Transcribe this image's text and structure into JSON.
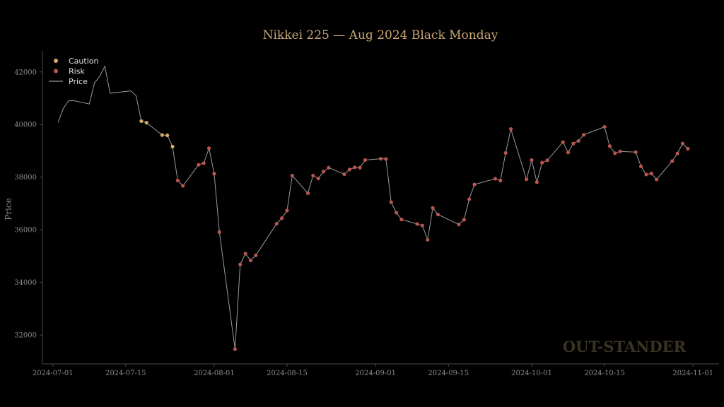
{
  "chart_data": {
    "type": "line",
    "title": "Nikkei 225 — Aug 2024 Black Monday",
    "ylabel": "Price",
    "xlabel": "",
    "ylim": [
      30900,
      42800
    ],
    "xlim": [
      "2024-06-29",
      "2024-11-06"
    ],
    "y_ticks": [
      32000,
      34000,
      36000,
      38000,
      40000,
      42000
    ],
    "x_ticks": [
      "2024-07-01",
      "2024-07-15",
      "2024-08-01",
      "2024-08-15",
      "2024-09-01",
      "2024-09-15",
      "2024-10-01",
      "2024-10-15",
      "2024-11-01"
    ],
    "grid": false,
    "legend_position": "top-left",
    "legend": [
      "Caution",
      "Risk",
      "Price"
    ],
    "watermark": "OUT-STANDER",
    "colors": {
      "price": "#9a9a9a",
      "caution": "#d4a866",
      "risk": "#b95550",
      "axis": "#4a4a4a"
    },
    "series": [
      {
        "name": "Price",
        "type": "line",
        "x": [
          "2024-07-02",
          "2024-07-03",
          "2024-07-04",
          "2024-07-05",
          "2024-07-08",
          "2024-07-09",
          "2024-07-10",
          "2024-07-11",
          "2024-07-12",
          "2024-07-16",
          "2024-07-17",
          "2024-07-18",
          "2024-07-19",
          "2024-07-22",
          "2024-07-23",
          "2024-07-24",
          "2024-07-25",
          "2024-07-26",
          "2024-07-29",
          "2024-07-30",
          "2024-07-31",
          "2024-08-01",
          "2024-08-02",
          "2024-08-05",
          "2024-08-06",
          "2024-08-07",
          "2024-08-08",
          "2024-08-09",
          "2024-08-13",
          "2024-08-14",
          "2024-08-15",
          "2024-08-16",
          "2024-08-19",
          "2024-08-20",
          "2024-08-21",
          "2024-08-22",
          "2024-08-23",
          "2024-08-26",
          "2024-08-27",
          "2024-08-28",
          "2024-08-29",
          "2024-08-30",
          "2024-09-02",
          "2024-09-03",
          "2024-09-04",
          "2024-09-05",
          "2024-09-06",
          "2024-09-09",
          "2024-09-10",
          "2024-09-11",
          "2024-09-12",
          "2024-09-13",
          "2024-09-17",
          "2024-09-18",
          "2024-09-19",
          "2024-09-20",
          "2024-09-24",
          "2024-09-25",
          "2024-09-26",
          "2024-09-27",
          "2024-09-30",
          "2024-10-01",
          "2024-10-02",
          "2024-10-03",
          "2024-10-04",
          "2024-10-07",
          "2024-10-08",
          "2024-10-09",
          "2024-10-10",
          "2024-10-11",
          "2024-10-15",
          "2024-10-16",
          "2024-10-17",
          "2024-10-18",
          "2024-10-21",
          "2024-10-22",
          "2024-10-23",
          "2024-10-24",
          "2024-10-25",
          "2024-10-28",
          "2024-10-29",
          "2024-10-30",
          "2024-10-31"
        ],
        "y": [
          40080,
          40600,
          40900,
          40910,
          40780,
          41580,
          41830,
          42220,
          41190,
          41280,
          41090,
          40130,
          40070,
          39600,
          39590,
          39160,
          37870,
          37670,
          38470,
          38530,
          39100,
          38130,
          35910,
          31460,
          34680,
          35090,
          34830,
          35030,
          36230,
          36440,
          36730,
          38060,
          37390,
          38060,
          37950,
          38210,
          38360,
          38110,
          38290,
          38370,
          38360,
          38650,
          38700,
          38690,
          37050,
          36650,
          36390,
          36220,
          36160,
          35620,
          36830,
          36580,
          36200,
          36380,
          37160,
          37720,
          37940,
          37870,
          38920,
          39830,
          37920,
          38650,
          37810,
          38550,
          38640,
          39330,
          38940,
          39280,
          39380,
          39610,
          39910,
          39180,
          38910,
          38980,
          38950,
          38410,
          38100,
          38140,
          37910,
          38610,
          38900,
          39280,
          39080
        ]
      },
      {
        "name": "Caution",
        "type": "scatter",
        "x": [
          "2024-07-18",
          "2024-07-19",
          "2024-07-22",
          "2024-07-23",
          "2024-07-24"
        ],
        "y": [
          40130,
          40070,
          39600,
          39590,
          39160
        ]
      },
      {
        "name": "Risk",
        "type": "scatter",
        "x": [
          "2024-07-25",
          "2024-07-26",
          "2024-07-29",
          "2024-07-30",
          "2024-07-31",
          "2024-08-01",
          "2024-08-02",
          "2024-08-05",
          "2024-08-06",
          "2024-08-07",
          "2024-08-08",
          "2024-08-09",
          "2024-08-13",
          "2024-08-14",
          "2024-08-15",
          "2024-08-16",
          "2024-08-19",
          "2024-08-20",
          "2024-08-21",
          "2024-08-22",
          "2024-08-23",
          "2024-08-26",
          "2024-08-27",
          "2024-08-28",
          "2024-08-29",
          "2024-08-30",
          "2024-09-02",
          "2024-09-03",
          "2024-09-04",
          "2024-09-05",
          "2024-09-06",
          "2024-09-09",
          "2024-09-10",
          "2024-09-11",
          "2024-09-12",
          "2024-09-13",
          "2024-09-17",
          "2024-09-18",
          "2024-09-19",
          "2024-09-20",
          "2024-09-24",
          "2024-09-25",
          "2024-09-26",
          "2024-09-27",
          "2024-09-30",
          "2024-10-01",
          "2024-10-02",
          "2024-10-03",
          "2024-10-04",
          "2024-10-07",
          "2024-10-08",
          "2024-10-09",
          "2024-10-10",
          "2024-10-11",
          "2024-10-15",
          "2024-10-16",
          "2024-10-17",
          "2024-10-18",
          "2024-10-21",
          "2024-10-22",
          "2024-10-23",
          "2024-10-24",
          "2024-10-25",
          "2024-10-28",
          "2024-10-29",
          "2024-10-30",
          "2024-10-31"
        ],
        "y": [
          37870,
          37670,
          38470,
          38530,
          39100,
          38130,
          35910,
          31460,
          34680,
          35090,
          34830,
          35030,
          36230,
          36440,
          36730,
          38060,
          37390,
          38060,
          37950,
          38210,
          38360,
          38110,
          38290,
          38370,
          38360,
          38650,
          38700,
          38690,
          37050,
          36650,
          36390,
          36220,
          36160,
          35620,
          36830,
          36580,
          36200,
          36380,
          37160,
          37720,
          37940,
          37870,
          38920,
          39830,
          37920,
          38650,
          37810,
          38550,
          38640,
          39330,
          38940,
          39280,
          39380,
          39610,
          39910,
          39180,
          38910,
          38980,
          38950,
          38410,
          38100,
          38140,
          37910,
          38610,
          38900,
          39280,
          39080
        ]
      }
    ]
  }
}
